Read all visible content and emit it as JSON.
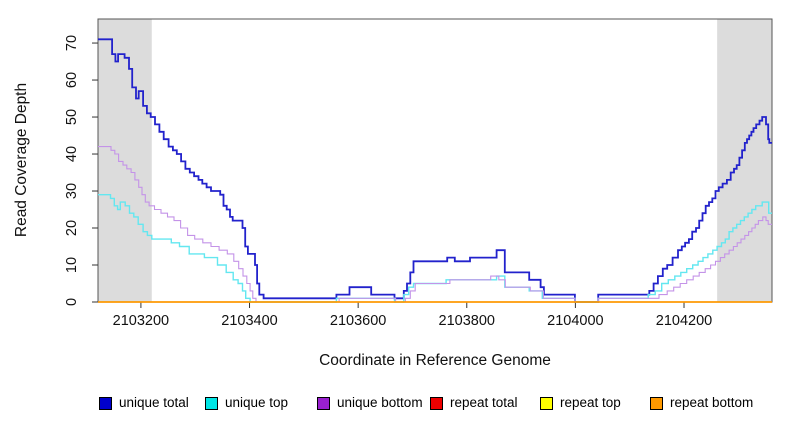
{
  "chart_data": {
    "type": "line",
    "title": "",
    "xlabel": "Coordinate in Reference Genome",
    "ylabel": "Read Coverage Depth",
    "xlim": [
      2103121,
      2104362
    ],
    "ylim": [
      0,
      76.5
    ],
    "grid": false,
    "step": "after",
    "legend_position": "bottom",
    "x_ticks": [
      2103200,
      2103400,
      2103600,
      2103800,
      2104000,
      2104200
    ],
    "x_tick_labels": [
      "2103200",
      "2103400",
      "2103600",
      "2103800",
      "2104000",
      "2104200"
    ],
    "y_ticks": [
      0,
      10,
      20,
      30,
      40,
      50,
      60,
      70
    ],
    "y_tick_labels": [
      "0",
      "10",
      "20",
      "30",
      "40",
      "50",
      "60",
      "70"
    ],
    "shaded_regions": [
      {
        "name": "repeat-region-left",
        "x0": 2103121,
        "x1": 2103220,
        "color": "#DCDCDC"
      },
      {
        "name": "repeat-region-right",
        "x0": 2104261,
        "x1": 2104362,
        "color": "#DCDCDC"
      }
    ],
    "series": [
      {
        "name": "unique total",
        "color": "#2222CC",
        "width": 1.8,
        "points": [
          [
            2103121,
            71
          ],
          [
            2103147,
            67
          ],
          [
            2103153,
            65
          ],
          [
            2103158,
            67
          ],
          [
            2103170,
            66
          ],
          [
            2103178,
            63
          ],
          [
            2103184,
            58
          ],
          [
            2103191,
            55
          ],
          [
            2103196,
            57
          ],
          [
            2103204,
            53
          ],
          [
            2103211,
            51
          ],
          [
            2103218,
            50
          ],
          [
            2103226,
            48
          ],
          [
            2103234,
            46
          ],
          [
            2103242,
            44
          ],
          [
            2103251,
            42
          ],
          [
            2103259,
            41
          ],
          [
            2103266,
            40
          ],
          [
            2103274,
            38
          ],
          [
            2103282,
            36
          ],
          [
            2103290,
            35
          ],
          [
            2103298,
            34
          ],
          [
            2103306,
            33
          ],
          [
            2103313,
            32
          ],
          [
            2103321,
            31
          ],
          [
            2103329,
            30
          ],
          [
            2103346,
            29
          ],
          [
            2103352,
            26
          ],
          [
            2103358,
            25
          ],
          [
            2103364,
            23
          ],
          [
            2103369,
            22
          ],
          [
            2103387,
            20
          ],
          [
            2103392,
            15
          ],
          [
            2103397,
            13
          ],
          [
            2103410,
            10
          ],
          [
            2103414,
            5
          ],
          [
            2103418,
            2
          ],
          [
            2103426,
            1
          ],
          [
            2103560,
            2
          ],
          [
            2103584,
            4
          ],
          [
            2103624,
            2
          ],
          [
            2103667,
            1
          ],
          [
            2103684,
            3
          ],
          [
            2103690,
            5
          ],
          [
            2103696,
            8
          ],
          [
            2103702,
            11
          ],
          [
            2103764,
            12
          ],
          [
            2103778,
            11
          ],
          [
            2103806,
            12
          ],
          [
            2103855,
            14
          ],
          [
            2103870,
            8
          ],
          [
            2103915,
            6
          ],
          [
            2103936,
            4
          ],
          [
            2103942,
            2
          ],
          [
            2103999,
            0
          ],
          [
            2104042,
            2
          ],
          [
            2104136,
            3
          ],
          [
            2104144,
            5
          ],
          [
            2104152,
            7
          ],
          [
            2104161,
            9
          ],
          [
            2104169,
            10
          ],
          [
            2104179,
            12
          ],
          [
            2104189,
            14
          ],
          [
            2104196,
            15
          ],
          [
            2104202,
            16
          ],
          [
            2104209,
            17
          ],
          [
            2104215,
            19
          ],
          [
            2104222,
            20
          ],
          [
            2104228,
            22
          ],
          [
            2104234,
            24
          ],
          [
            2104240,
            26
          ],
          [
            2104246,
            27
          ],
          [
            2104252,
            28
          ],
          [
            2104258,
            30
          ],
          [
            2104264,
            31
          ],
          [
            2104271,
            32
          ],
          [
            2104279,
            33
          ],
          [
            2104286,
            35
          ],
          [
            2104292,
            36
          ],
          [
            2104297,
            37
          ],
          [
            2104302,
            39
          ],
          [
            2104307,
            41
          ],
          [
            2104312,
            43
          ],
          [
            2104316,
            44
          ],
          [
            2104320,
            45
          ],
          [
            2104324,
            46
          ],
          [
            2104328,
            47
          ],
          [
            2104333,
            48
          ],
          [
            2104339,
            49
          ],
          [
            2104344,
            50
          ],
          [
            2104351,
            48
          ],
          [
            2104355,
            44
          ],
          [
            2104357,
            43
          ],
          [
            2104362,
            43
          ]
        ]
      },
      {
        "name": "unique top",
        "color": "#63E7F0",
        "width": 1.4,
        "points": [
          [
            2103121,
            29
          ],
          [
            2103144,
            28
          ],
          [
            2103151,
            26
          ],
          [
            2103157,
            25
          ],
          [
            2103162,
            27
          ],
          [
            2103171,
            26
          ],
          [
            2103179,
            24
          ],
          [
            2103187,
            23
          ],
          [
            2103195,
            21
          ],
          [
            2103204,
            19
          ],
          [
            2103212,
            18
          ],
          [
            2103220,
            17
          ],
          [
            2103256,
            16
          ],
          [
            2103271,
            15
          ],
          [
            2103289,
            13
          ],
          [
            2103317,
            12
          ],
          [
            2103341,
            10
          ],
          [
            2103357,
            8
          ],
          [
            2103370,
            6
          ],
          [
            2103379,
            5
          ],
          [
            2103387,
            3
          ],
          [
            2103393,
            1
          ],
          [
            2103401,
            0
          ],
          [
            2103560,
            1
          ],
          [
            2103667,
            0
          ],
          [
            2103684,
            2
          ],
          [
            2103693,
            4
          ],
          [
            2103702,
            5
          ],
          [
            2103762,
            6
          ],
          [
            2103855,
            7
          ],
          [
            2103870,
            4
          ],
          [
            2103915,
            3
          ],
          [
            2103939,
            1
          ],
          [
            2103999,
            0
          ],
          [
            2104042,
            1
          ],
          [
            2104134,
            2
          ],
          [
            2104147,
            3
          ],
          [
            2104159,
            5
          ],
          [
            2104171,
            6
          ],
          [
            2104183,
            7
          ],
          [
            2104194,
            8
          ],
          [
            2104205,
            9
          ],
          [
            2104216,
            10
          ],
          [
            2104226,
            11
          ],
          [
            2104235,
            12
          ],
          [
            2104244,
            13
          ],
          [
            2104253,
            14
          ],
          [
            2104261,
            15
          ],
          [
            2104269,
            16
          ],
          [
            2104276,
            17
          ],
          [
            2104283,
            19
          ],
          [
            2104290,
            20
          ],
          [
            2104297,
            21
          ],
          [
            2104304,
            22
          ],
          [
            2104311,
            23
          ],
          [
            2104318,
            24
          ],
          [
            2104325,
            25
          ],
          [
            2104332,
            26
          ],
          [
            2104344,
            27
          ],
          [
            2104356,
            24
          ],
          [
            2104362,
            24
          ]
        ]
      },
      {
        "name": "unique bottom",
        "color": "#C493E8",
        "width": 1.1,
        "points": [
          [
            2103121,
            42
          ],
          [
            2103145,
            41
          ],
          [
            2103152,
            40
          ],
          [
            2103159,
            38
          ],
          [
            2103167,
            37
          ],
          [
            2103174,
            36
          ],
          [
            2103182,
            35
          ],
          [
            2103189,
            33
          ],
          [
            2103196,
            31
          ],
          [
            2103202,
            29
          ],
          [
            2103208,
            27
          ],
          [
            2103215,
            26
          ],
          [
            2103225,
            25
          ],
          [
            2103237,
            24
          ],
          [
            2103249,
            23
          ],
          [
            2103261,
            22
          ],
          [
            2103273,
            20
          ],
          [
            2103286,
            18
          ],
          [
            2103299,
            17
          ],
          [
            2103314,
            16
          ],
          [
            2103329,
            15
          ],
          [
            2103344,
            14
          ],
          [
            2103359,
            13
          ],
          [
            2103371,
            11
          ],
          [
            2103380,
            9
          ],
          [
            2103388,
            7
          ],
          [
            2103395,
            5
          ],
          [
            2103401,
            3
          ],
          [
            2103406,
            1
          ],
          [
            2103412,
            0
          ],
          [
            2103565,
            1
          ],
          [
            2103669,
            0
          ],
          [
            2103687,
            1
          ],
          [
            2103696,
            3
          ],
          [
            2103705,
            5
          ],
          [
            2103769,
            6
          ],
          [
            2103844,
            7
          ],
          [
            2103859,
            6
          ],
          [
            2103871,
            4
          ],
          [
            2103917,
            3
          ],
          [
            2103941,
            1
          ],
          [
            2103999,
            0
          ],
          [
            2104042,
            1
          ],
          [
            2104139,
            1
          ],
          [
            2104154,
            2
          ],
          [
            2104169,
            3
          ],
          [
            2104181,
            4
          ],
          [
            2104193,
            5
          ],
          [
            2104205,
            6
          ],
          [
            2104217,
            7
          ],
          [
            2104228,
            8
          ],
          [
            2104239,
            9
          ],
          [
            2104249,
            10
          ],
          [
            2104258,
            11
          ],
          [
            2104267,
            12
          ],
          [
            2104275,
            13
          ],
          [
            2104283,
            14
          ],
          [
            2104291,
            15
          ],
          [
            2104298,
            16
          ],
          [
            2104305,
            17
          ],
          [
            2104312,
            18
          ],
          [
            2104319,
            19
          ],
          [
            2104325,
            20
          ],
          [
            2104331,
            21
          ],
          [
            2104337,
            22
          ],
          [
            2104345,
            23
          ],
          [
            2104351,
            22
          ],
          [
            2104355,
            21
          ],
          [
            2104362,
            21
          ]
        ]
      },
      {
        "name": "repeat total",
        "color": "#DD0000",
        "width": 1.2,
        "points": [
          [
            2103121,
            0
          ],
          [
            2104362,
            0
          ]
        ]
      },
      {
        "name": "repeat top",
        "color": "#FFFF00",
        "width": 1.2,
        "points": [
          [
            2103121,
            0
          ],
          [
            2104362,
            0
          ]
        ]
      },
      {
        "name": "repeat bottom",
        "color": "#FF9900",
        "width": 1.6,
        "points": [
          [
            2103121,
            0
          ],
          [
            2104362,
            0
          ]
        ]
      }
    ],
    "legend": [
      {
        "label": "unique total",
        "color": "#0000CC"
      },
      {
        "label": "unique top",
        "color": "#00E5E5"
      },
      {
        "label": "unique bottom",
        "color": "#9A20D0"
      },
      {
        "label": "repeat total",
        "color": "#EE0000"
      },
      {
        "label": "repeat top",
        "color": "#FFFF00"
      },
      {
        "label": "repeat bottom",
        "color": "#FF9900"
      }
    ],
    "frame_color": "#555555",
    "tick_color": "#333333"
  }
}
